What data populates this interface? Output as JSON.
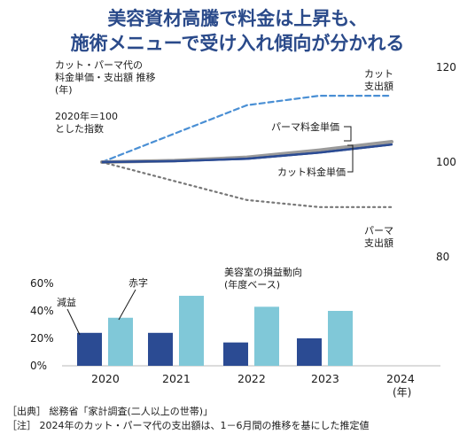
{
  "headline": {
    "line1": "美容資材高騰で料金は上昇も、",
    "line2": "施術メニューで受け入れ傾向が分かれる"
  },
  "colors": {
    "headline": "#2a4a8a",
    "dark_blue": "#2b4b93",
    "light_blue": "#80c8d8",
    "dashed_blue": "#4a8fd4",
    "gray_line": "#9a9a9a",
    "dotted_gray": "#777777"
  },
  "chart_data": [
    {
      "type": "line",
      "title": "カット・パーマ代の\n料金単価・支出額 推移\n(年)",
      "note": "2020年＝100\nとした指数",
      "x": [
        "2020",
        "2021",
        "2022",
        "2023",
        "2024"
      ],
      "ylim": [
        80,
        120
      ],
      "yticks": [
        "120",
        "100",
        "80"
      ],
      "series": [
        {
          "name": "カット\n支出額",
          "style": "dashed",
          "values": [
            100,
            106,
            112,
            114,
            114
          ]
        },
        {
          "name": "パーマ料金単価",
          "style": "solid-gray",
          "values": [
            100,
            100.3,
            101,
            102.5,
            104.3
          ]
        },
        {
          "name": "カット料金単価",
          "style": "solid-dark",
          "values": [
            100,
            100.2,
            100.7,
            102,
            103.7
          ]
        },
        {
          "name": "パーマ\n支出額",
          "style": "dotted",
          "values": [
            100,
            96,
            92,
            90.5,
            90.5
          ]
        }
      ]
    },
    {
      "type": "bar",
      "title": "美容室の損益動向\n(年度ベース)",
      "categories": [
        "2020",
        "2021",
        "2022",
        "2023",
        "2024"
      ],
      "xlabel_suffix": "(年)",
      "ylim": [
        0,
        60
      ],
      "yticks": [
        "60%",
        "40%",
        "20%",
        "0%"
      ],
      "series": [
        {
          "name": "減益",
          "values": [
            24,
            24,
            17,
            20,
            null
          ]
        },
        {
          "name": "赤字",
          "values": [
            35,
            51,
            43,
            40,
            null
          ]
        }
      ]
    }
  ],
  "source": {
    "line1": "［出典］ 総務省「家計調査(二人以上の世帯)」",
    "line2": "［注］ 2024年のカット・パーマ代の支出額は、1－6月間の推移を基にした推定値"
  }
}
